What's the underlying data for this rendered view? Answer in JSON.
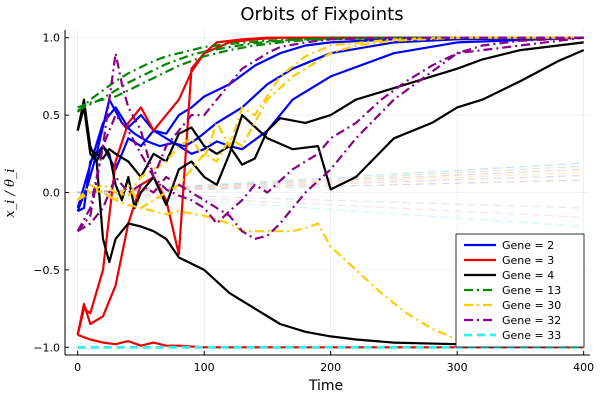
{
  "chart_data": {
    "type": "line",
    "title": "Orbits of Fixpoints",
    "xlabel": "Time",
    "ylabel": "x_i / θ_i",
    "xlim": [
      -10,
      405
    ],
    "ylim": [
      -1.05,
      1.05
    ],
    "xticks": [
      0,
      100,
      200,
      300,
      400
    ],
    "yticks": [
      -1.0,
      -0.5,
      0.0,
      0.5,
      1.0
    ],
    "ytick_labels": [
      "−1.0",
      "−0.5",
      "0.0",
      "0.5",
      "1.0"
    ],
    "grid": true,
    "legend_position": "bottom-right",
    "series": [
      {
        "name": "Gene = 2",
        "color": "#0000ff",
        "style": "solid",
        "width": 2.2,
        "legend": true,
        "x": [
          0,
          5,
          10,
          20,
          30,
          40,
          50,
          60,
          70,
          80,
          90,
          100,
          120,
          140,
          160,
          180,
          200,
          250,
          300,
          400
        ],
        "y": [
          -0.12,
          -0.1,
          0.2,
          0.3,
          0.15,
          0.35,
          0.3,
          0.4,
          0.38,
          0.5,
          0.55,
          0.62,
          0.7,
          0.82,
          0.9,
          0.95,
          0.97,
          0.99,
          1.0,
          1.0
        ]
      },
      {
        "name": "",
        "color": "#0000ff",
        "style": "solid",
        "width": 2.2,
        "legend": false,
        "x": [
          0,
          8,
          15,
          25,
          35,
          45,
          55,
          65,
          75,
          85,
          95,
          110,
          130,
          150,
          170,
          200,
          250,
          300,
          400
        ],
        "y": [
          -0.12,
          0.05,
          0.25,
          0.6,
          0.45,
          0.38,
          0.33,
          0.3,
          0.32,
          0.3,
          0.35,
          0.45,
          0.55,
          0.7,
          0.8,
          0.9,
          0.97,
          0.99,
          1.0
        ]
      },
      {
        "name": "",
        "color": "#0000ff",
        "style": "solid",
        "width": 2.2,
        "legend": false,
        "x": [
          0,
          10,
          20,
          30,
          40,
          50,
          60,
          70,
          80,
          90,
          100,
          110,
          120,
          130,
          150,
          170,
          200,
          250,
          300,
          400
        ],
        "y": [
          -0.1,
          0.18,
          0.45,
          0.55,
          0.42,
          0.5,
          0.4,
          0.35,
          0.3,
          0.25,
          0.28,
          0.33,
          0.3,
          0.28,
          0.4,
          0.6,
          0.75,
          0.9,
          0.97,
          1.0
        ]
      },
      {
        "name": "Gene = 3",
        "color": "#ee0000",
        "style": "solid",
        "width": 2.2,
        "legend": true,
        "x": [
          0,
          5,
          10,
          20,
          30,
          40,
          50,
          60,
          70,
          80,
          90,
          100,
          120,
          140,
          160,
          200,
          250,
          300,
          400
        ],
        "y": [
          -0.92,
          -0.75,
          -0.78,
          -0.5,
          0.2,
          0.45,
          0.55,
          0.4,
          0.5,
          0.6,
          0.78,
          0.9,
          0.97,
          0.99,
          1.0,
          1.0,
          1.0,
          1.0,
          1.0
        ]
      },
      {
        "name": "",
        "color": "#ee0000",
        "style": "solid",
        "width": 2.2,
        "legend": false,
        "x": [
          0,
          5,
          10,
          20,
          30,
          40,
          50,
          60,
          70,
          80,
          90,
          100,
          110,
          130,
          150,
          200,
          250,
          300,
          400
        ],
        "y": [
          -0.92,
          -0.72,
          -0.85,
          -0.8,
          -0.6,
          -0.2,
          0.05,
          0.1,
          -0.05,
          -0.4,
          0.8,
          0.9,
          0.97,
          0.99,
          1.0,
          1.0,
          1.0,
          1.0,
          1.0
        ]
      },
      {
        "name": "",
        "color": "#ee0000",
        "style": "solid",
        "width": 2.2,
        "legend": false,
        "x": [
          0,
          10,
          20,
          30,
          40,
          50,
          60,
          70,
          80,
          100,
          150,
          200,
          300,
          400
        ],
        "y": [
          -0.92,
          -0.95,
          -0.97,
          -0.98,
          -0.96,
          -0.99,
          -0.97,
          -0.99,
          -0.99,
          -1.0,
          -1.0,
          -1.0,
          -1.0,
          -1.0
        ]
      },
      {
        "name": "Gene = 4",
        "color": "#000000",
        "style": "solid",
        "width": 2.2,
        "legend": true,
        "x": [
          0,
          5,
          10,
          15,
          20,
          25,
          30,
          35,
          40,
          50,
          60,
          70,
          80,
          100,
          120,
          140,
          160,
          180,
          200,
          220,
          250,
          300,
          350,
          400
        ],
        "y": [
          0.4,
          0.58,
          0.3,
          0.2,
          -0.3,
          -0.45,
          -0.3,
          -0.25,
          -0.2,
          -0.22,
          -0.25,
          -0.3,
          -0.42,
          -0.5,
          -0.65,
          -0.75,
          -0.85,
          -0.9,
          -0.93,
          -0.95,
          -0.97,
          -0.98,
          -0.99,
          -0.99
        ]
      },
      {
        "name": "",
        "color": "#000000",
        "style": "solid",
        "width": 2.2,
        "legend": false,
        "x": [
          0,
          5,
          10,
          15,
          20,
          25,
          30,
          35,
          40,
          45,
          50,
          60,
          70,
          80,
          90,
          100,
          110,
          120,
          130,
          150,
          170,
          190,
          200,
          220,
          250,
          280,
          300,
          320,
          350,
          380,
          400
        ],
        "y": [
          0.4,
          0.55,
          0.25,
          0.2,
          0.3,
          0.25,
          0.05,
          -0.05,
          0.1,
          -0.1,
          0.0,
          0.1,
          -0.08,
          0.15,
          0.2,
          0.1,
          0.05,
          0.25,
          0.5,
          0.35,
          0.28,
          0.3,
          0.02,
          0.1,
          0.35,
          0.45,
          0.55,
          0.6,
          0.72,
          0.85,
          0.92
        ]
      },
      {
        "name": "",
        "color": "#000000",
        "style": "solid",
        "width": 2.2,
        "legend": false,
        "x": [
          0,
          5,
          10,
          15,
          20,
          25,
          30,
          40,
          50,
          60,
          70,
          80,
          90,
          100,
          110,
          120,
          130,
          140,
          150,
          160,
          180,
          200,
          220,
          240,
          260,
          280,
          300,
          320,
          350,
          400
        ],
        "y": [
          0.4,
          0.6,
          0.28,
          0.25,
          0.22,
          0.28,
          0.25,
          0.2,
          0.1,
          0.25,
          0.2,
          0.38,
          0.42,
          0.3,
          0.25,
          0.3,
          0.18,
          0.22,
          0.4,
          0.48,
          0.45,
          0.5,
          0.6,
          0.65,
          0.7,
          0.75,
          0.8,
          0.86,
          0.92,
          0.97
        ]
      },
      {
        "name": "Gene = 13",
        "color": "#008800",
        "style": "dashdot",
        "width": 2.2,
        "legend": true,
        "x": [
          0,
          10,
          20,
          30,
          40,
          50,
          60,
          70,
          80,
          90,
          100,
          120,
          140,
          160,
          180,
          200,
          250,
          300,
          400
        ],
        "y": [
          0.52,
          0.6,
          0.66,
          0.72,
          0.77,
          0.81,
          0.85,
          0.88,
          0.9,
          0.92,
          0.94,
          0.96,
          0.975,
          0.985,
          0.99,
          0.995,
          1.0,
          1.0,
          1.0
        ]
      },
      {
        "name": "",
        "color": "#008800",
        "style": "dashdot",
        "width": 2.2,
        "legend": false,
        "x": [
          0,
          10,
          20,
          30,
          40,
          50,
          60,
          70,
          80,
          90,
          100,
          120,
          140,
          160,
          180,
          200,
          250,
          300,
          400
        ],
        "y": [
          0.53,
          0.57,
          0.61,
          0.66,
          0.71,
          0.75,
          0.79,
          0.83,
          0.86,
          0.89,
          0.91,
          0.94,
          0.965,
          0.98,
          0.99,
          0.995,
          1.0,
          1.0,
          1.0
        ]
      },
      {
        "name": "",
        "color": "#008800",
        "style": "dashdot",
        "width": 2.2,
        "legend": false,
        "x": [
          0,
          10,
          20,
          30,
          40,
          50,
          60,
          70,
          80,
          90,
          100,
          120,
          140,
          160,
          180,
          200,
          250,
          300,
          400
        ],
        "y": [
          0.55,
          0.58,
          0.6,
          0.62,
          0.66,
          0.7,
          0.74,
          0.78,
          0.82,
          0.85,
          0.88,
          0.92,
          0.95,
          0.97,
          0.985,
          0.99,
          1.0,
          1.0,
          1.0
        ]
      },
      {
        "name": "Gene = 30",
        "color": "#ffcc00",
        "style": "dashdot",
        "width": 2.2,
        "legend": true,
        "x": [
          0,
          10,
          20,
          30,
          40,
          50,
          60,
          70,
          80,
          100,
          120,
          130,
          150,
          170,
          180,
          190,
          200,
          220,
          240,
          260,
          280,
          300,
          330,
          360,
          400
        ],
        "y": [
          -0.05,
          0.02,
          0.0,
          -0.05,
          -0.08,
          -0.1,
          -0.12,
          -0.14,
          -0.12,
          -0.15,
          -0.2,
          -0.25,
          -0.25,
          -0.25,
          -0.23,
          -0.2,
          -0.35,
          -0.5,
          -0.65,
          -0.78,
          -0.88,
          -0.95,
          -0.98,
          -0.99,
          -1.0
        ]
      },
      {
        "name": "",
        "color": "#ffcc00",
        "style": "dashdot",
        "width": 2.2,
        "legend": false,
        "x": [
          0,
          10,
          20,
          30,
          40,
          50,
          60,
          70,
          80,
          90,
          100,
          110,
          120,
          130,
          150,
          170,
          190,
          200,
          220,
          250,
          300,
          400
        ],
        "y": [
          -0.05,
          0.05,
          0.0,
          -0.05,
          0.05,
          -0.1,
          -0.05,
          0.0,
          0.05,
          0.15,
          0.25,
          0.2,
          0.35,
          0.3,
          0.6,
          0.75,
          0.85,
          0.9,
          0.95,
          0.98,
          1.0,
          1.0
        ]
      },
      {
        "name": "",
        "color": "#ffcc00",
        "style": "dashdot",
        "width": 2.2,
        "legend": false,
        "x": [
          0,
          10,
          20,
          30,
          40,
          50,
          60,
          70,
          80,
          90,
          100,
          110,
          120,
          130,
          140,
          160,
          180,
          200,
          250,
          300,
          400
        ],
        "y": [
          -0.05,
          0.0,
          0.05,
          0.0,
          -0.02,
          0.1,
          0.15,
          0.2,
          0.3,
          0.35,
          0.22,
          0.45,
          0.3,
          0.55,
          0.5,
          0.75,
          0.88,
          0.95,
          0.99,
          1.0,
          1.0
        ]
      },
      {
        "name": "Gene = 32",
        "color": "#880088",
        "style": "dashdot",
        "width": 2.2,
        "legend": true,
        "x": [
          0,
          10,
          20,
          30,
          35,
          40,
          50,
          60,
          70,
          80,
          90,
          100,
          110,
          120,
          130,
          140,
          150,
          160,
          180,
          200,
          250,
          300,
          400
        ],
        "y": [
          -0.25,
          -0.1,
          0.3,
          0.9,
          0.7,
          0.55,
          0.4,
          0.1,
          0.3,
          0.4,
          0.5,
          0.5,
          0.6,
          0.7,
          0.8,
          0.85,
          0.9,
          0.94,
          0.97,
          0.99,
          1.0,
          1.0,
          1.0
        ]
      },
      {
        "name": "",
        "color": "#880088",
        "style": "dashdot",
        "width": 2.2,
        "legend": false,
        "x": [
          0,
          10,
          20,
          30,
          40,
          50,
          60,
          70,
          80,
          90,
          100,
          110,
          120,
          130,
          140,
          150,
          170,
          190,
          200,
          220,
          240,
          260,
          280,
          300,
          320,
          350,
          400
        ],
        "y": [
          -0.25,
          -0.15,
          0.3,
          0.5,
          0.4,
          0.25,
          0.1,
          0.02,
          -0.02,
          -0.05,
          -0.1,
          -0.2,
          -0.12,
          -0.05,
          0.05,
          0.0,
          0.15,
          0.25,
          0.35,
          0.45,
          0.6,
          0.72,
          0.82,
          0.9,
          0.95,
          0.98,
          1.0
        ]
      },
      {
        "name": "",
        "color": "#880088",
        "style": "dashdot",
        "width": 2.2,
        "legend": false,
        "x": [
          0,
          10,
          20,
          30,
          40,
          50,
          60,
          70,
          80,
          90,
          100,
          110,
          120,
          130,
          140,
          150,
          160,
          170,
          180,
          200,
          220,
          250,
          300,
          400
        ],
        "y": [
          -0.25,
          -0.2,
          -0.1,
          0.1,
          0.0,
          0.05,
          0.0,
          0.1,
          0.05,
          0.0,
          -0.05,
          -0.1,
          -0.15,
          -0.25,
          -0.3,
          -0.28,
          -0.2,
          -0.1,
          0.0,
          0.15,
          0.35,
          0.6,
          0.9,
          1.0
        ]
      },
      {
        "name": "Gene = 33",
        "color": "#33eeee",
        "style": "dash",
        "width": 2.8,
        "legend": true,
        "x": [
          0,
          400
        ],
        "y": [
          -1.0,
          -1.0
        ]
      },
      {
        "name": "",
        "color": "#66aaff",
        "style": "dash",
        "width": 1.2,
        "legend": false,
        "alpha": 0.35,
        "x": [
          0,
          400
        ],
        "y": [
          0.0,
          0.19
        ]
      },
      {
        "name": "",
        "color": "#88cc88",
        "style": "dash",
        "width": 1.2,
        "legend": false,
        "alpha": 0.35,
        "x": [
          0,
          400
        ],
        "y": [
          0.0,
          0.17
        ]
      },
      {
        "name": "",
        "color": "#ee8888",
        "style": "dash",
        "width": 1.2,
        "legend": false,
        "alpha": 0.35,
        "x": [
          0,
          400
        ],
        "y": [
          0.0,
          0.15
        ]
      },
      {
        "name": "",
        "color": "#ffcc66",
        "style": "dash",
        "width": 1.2,
        "legend": false,
        "alpha": 0.35,
        "x": [
          0,
          400
        ],
        "y": [
          0.0,
          0.13
        ]
      },
      {
        "name": "",
        "color": "#cc88cc",
        "style": "dash",
        "width": 1.2,
        "legend": false,
        "alpha": 0.35,
        "x": [
          0,
          400
        ],
        "y": [
          0.0,
          0.11
        ]
      },
      {
        "name": "",
        "color": "#999999",
        "style": "dash",
        "width": 1.2,
        "legend": false,
        "alpha": 0.35,
        "x": [
          0,
          400
        ],
        "y": [
          0.0,
          0.08
        ]
      },
      {
        "name": "",
        "color": "#bbbbbb",
        "style": "dash",
        "width": 1.2,
        "legend": false,
        "alpha": 0.35,
        "x": [
          0,
          400
        ],
        "y": [
          0.0,
          -0.1
        ]
      },
      {
        "name": "",
        "color": "#ffaaaa",
        "style": "dash",
        "width": 1.2,
        "legend": false,
        "alpha": 0.35,
        "x": [
          0,
          400
        ],
        "y": [
          0.0,
          -0.16
        ]
      },
      {
        "name": "",
        "color": "#66eeee",
        "style": "dash",
        "width": 1.2,
        "legend": false,
        "alpha": 0.35,
        "x": [
          0,
          400
        ],
        "y": [
          0.0,
          -0.22
        ]
      }
    ]
  }
}
